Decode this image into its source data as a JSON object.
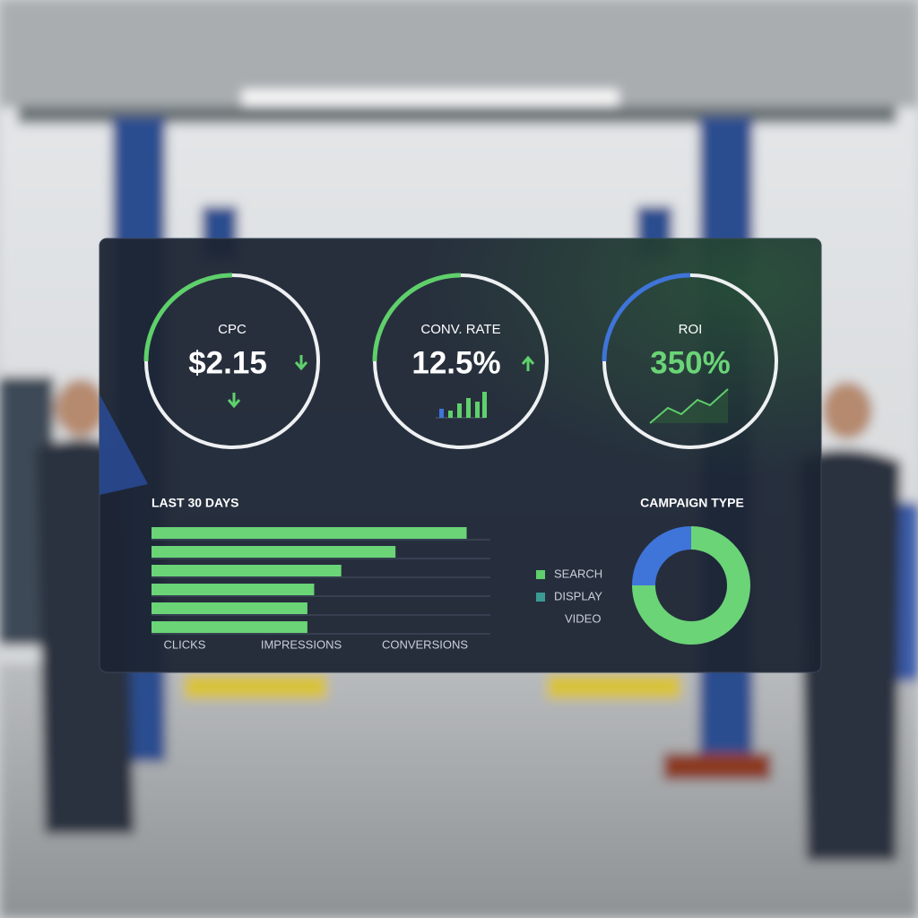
{
  "gauges": [
    {
      "label": "CPC",
      "value": "$2.15",
      "progress": 25,
      "color": "#5fd06b",
      "value_color": "#ffffff"
    },
    {
      "label": "CONV. RATE",
      "value": "12.5%",
      "progress": 25,
      "color": "#5fd06b",
      "value_color": "#ffffff"
    },
    {
      "label": "ROI",
      "value": "350%",
      "progress": 25,
      "color": "#3f74d9",
      "value_color": "#6ad477"
    }
  ],
  "bars": {
    "title": "LAST 30 DAYS",
    "values": [
      93,
      72,
      56,
      48,
      46,
      46
    ],
    "xlim": [
      0,
      100
    ],
    "color": "#6ad477",
    "axis_labels": [
      "CLICKS",
      "IMPRESSIONS",
      "CONVERSIONS"
    ]
  },
  "campaign": {
    "title": "CAMPAIGN TYPE",
    "legend": [
      {
        "label": "SEARCH",
        "color": "#5fd06b"
      },
      {
        "label": "DISPLAY",
        "color": "#3b9a94"
      },
      {
        "label": "VIDEO"
      }
    ],
    "donut": {
      "values": [
        25,
        75
      ],
      "colors": [
        "#3f74d9",
        "#6ad477"
      ]
    }
  }
}
